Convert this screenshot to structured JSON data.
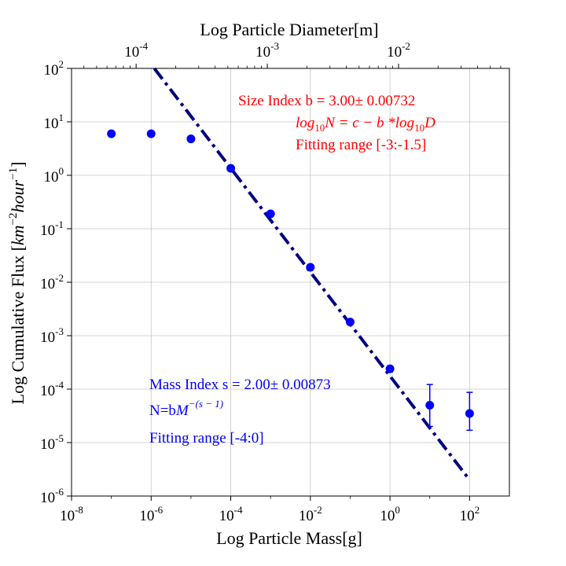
{
  "chart_data": {
    "type": "scatter",
    "title": "",
    "xlabel": "Log Particle Mass[g]",
    "ylabel": "Log Cumulative Flux [km^-2 hour^-1]",
    "ylabel_parts": {
      "text": "Log Cumulative Flux [",
      "unit": "km",
      "exp1": "−2",
      "unit2": "hour",
      "exp2": "−1",
      "close": "]"
    },
    "x2label": "Log Particle Diameter[m]",
    "xscale": "log",
    "yscale": "log",
    "x2scale": "log",
    "xlim": [
      1e-08,
      1000
    ],
    "ylim": [
      1e-06,
      100
    ],
    "x2lim": [
      3.22e-05,
      0.0699
    ],
    "grid": true,
    "legend": "none",
    "x_ticks": [
      {
        "value": 1e-08,
        "base": "10",
        "exp": "-8"
      },
      {
        "value": 1e-06,
        "base": "10",
        "exp": "-6"
      },
      {
        "value": 0.0001,
        "base": "10",
        "exp": "-4"
      },
      {
        "value": 0.01,
        "base": "10",
        "exp": "-2"
      },
      {
        "value": 1,
        "base": "10",
        "exp": "0"
      },
      {
        "value": 100,
        "base": "10",
        "exp": "2"
      }
    ],
    "y_ticks": [
      {
        "value": 1e-06,
        "base": "10",
        "exp": "-6"
      },
      {
        "value": 1e-05,
        "base": "10",
        "exp": "-5"
      },
      {
        "value": 0.0001,
        "base": "10",
        "exp": "-4"
      },
      {
        "value": 0.001,
        "base": "10",
        "exp": "-3"
      },
      {
        "value": 0.01,
        "base": "10",
        "exp": "-2"
      },
      {
        "value": 0.1,
        "base": "10",
        "exp": "-1"
      },
      {
        "value": 1,
        "base": "10",
        "exp": "0"
      },
      {
        "value": 10,
        "base": "10",
        "exp": "1"
      },
      {
        "value": 100,
        "base": "10",
        "exp": "2"
      }
    ],
    "x2_ticks": [
      {
        "value": 0.0001,
        "base": "10",
        "exp": "-4"
      },
      {
        "value": 0.001,
        "base": "10",
        "exp": "-3"
      },
      {
        "value": 0.01,
        "base": "10",
        "exp": "-2"
      }
    ],
    "series": [
      {
        "marker": "circle",
        "color": "#0000ff",
        "x": [
          1e-07,
          1e-06,
          1e-05,
          0.0001,
          0.001,
          0.01,
          0.1,
          1,
          10,
          100
        ],
        "y": [
          6.0,
          6.0,
          4.8,
          1.35,
          0.19,
          0.019,
          0.0018,
          0.00024,
          5e-05,
          3.5e-05
        ],
        "yerr_low": [
          0,
          0,
          0,
          0,
          0,
          0,
          0,
          3e-05,
          3e-05,
          1.8e-05
        ],
        "yerr_high": [
          0,
          0,
          0,
          0,
          0,
          0,
          0,
          3e-05,
          7.2e-05,
          5.2e-05
        ]
      }
    ],
    "fit_line": {
      "style": "dashdot",
      "color": "#000080",
      "x": [
        1.2e-06,
        100
      ],
      "y": [
        100,
        2e-06
      ]
    },
    "annotations": {
      "size_index": "Size Index b = 3.00± 0.00732",
      "size_formula": {
        "a": "log",
        "sub1": "10",
        "b": "N = c − b *log",
        "sub2": "10",
        "c": "D"
      },
      "size_range": "Fitting range [-3:-1.5]",
      "mass_index": "Mass Index s = 2.00± 0.00873",
      "mass_formula": {
        "a": "N=b",
        "b": "M",
        "sup": "−(s − 1)"
      },
      "mass_range": "Fitting range [-4:0]",
      "size_color": "#ff0000",
      "mass_color": "#0000ff"
    }
  }
}
